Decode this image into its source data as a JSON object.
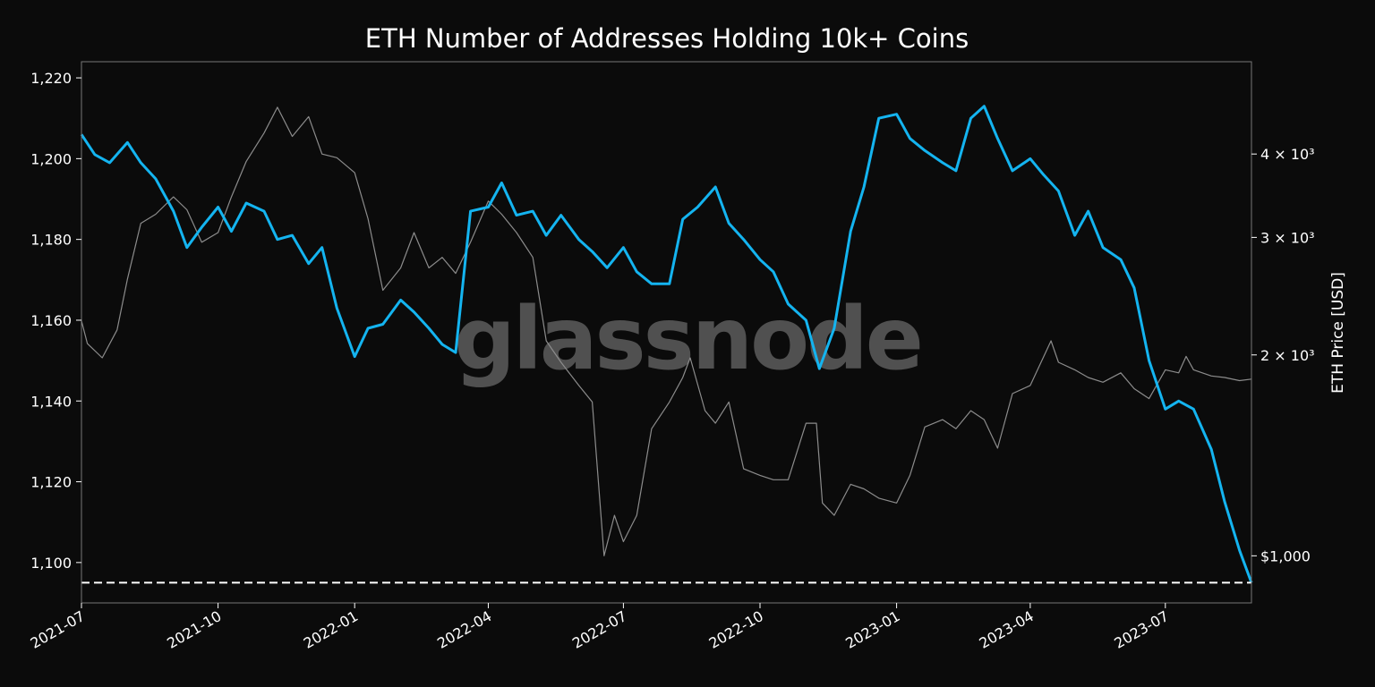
{
  "watermark": "glassnode",
  "colors": {
    "background": "#0b0b0b",
    "addresses_line": "#14b4f0",
    "price_line": "#8c8c8c",
    "frame": "#777777",
    "reference_line": "#ffffff"
  },
  "chart_data": {
    "type": "line",
    "title": "ETH Number of Addresses Holding 10k+ Coins",
    "xlabel": "",
    "ylabel": "",
    "y2label": "ETH Price [USD]",
    "x_ticks": [
      "2021-07",
      "2021-10",
      "2022-01",
      "2022-04",
      "2022-07",
      "2022-10",
      "2023-01",
      "2023-04",
      "2023-07"
    ],
    "y_ticks": [
      "1,100",
      "1,120",
      "1,140",
      "1,160",
      "1,180",
      "1,200",
      "1,220"
    ],
    "y2_ticks": [
      "$1,000",
      "2 × 10³",
      "3 × 10³",
      "4 × 10³"
    ],
    "y2_scale": "log",
    "xlim": [
      "2021-07-01",
      "2023-08-28"
    ],
    "ylim": [
      1090,
      1224
    ],
    "y2lim": [
      850,
      5500
    ],
    "reference_line": {
      "axis": "y",
      "value": 1095,
      "style": "dashed"
    },
    "series": [
      {
        "axis": "left",
        "color": "#14b4f0",
        "points": [
          [
            "2021-07-01",
            1206
          ],
          [
            "2021-07-10",
            1201
          ],
          [
            "2021-07-20",
            1199
          ],
          [
            "2021-08-01",
            1204
          ],
          [
            "2021-08-10",
            1199
          ],
          [
            "2021-08-20",
            1195
          ],
          [
            "2021-09-01",
            1187
          ],
          [
            "2021-09-10",
            1178
          ],
          [
            "2021-09-20",
            1183
          ],
          [
            "2021-10-01",
            1188
          ],
          [
            "2021-10-10",
            1182
          ],
          [
            "2021-10-20",
            1189
          ],
          [
            "2021-11-01",
            1187
          ],
          [
            "2021-11-10",
            1180
          ],
          [
            "2021-11-20",
            1181
          ],
          [
            "2021-12-01",
            1174
          ],
          [
            "2021-12-10",
            1178
          ],
          [
            "2021-12-20",
            1163
          ],
          [
            "2022-01-01",
            1151
          ],
          [
            "2022-01-10",
            1158
          ],
          [
            "2022-01-20",
            1159
          ],
          [
            "2022-02-01",
            1165
          ],
          [
            "2022-02-10",
            1162
          ],
          [
            "2022-02-20",
            1158
          ],
          [
            "2022-03-01",
            1154
          ],
          [
            "2022-03-10",
            1152
          ],
          [
            "2022-03-20",
            1187
          ],
          [
            "2022-04-01",
            1188
          ],
          [
            "2022-04-10",
            1194
          ],
          [
            "2022-04-20",
            1186
          ],
          [
            "2022-05-01",
            1187
          ],
          [
            "2022-05-10",
            1181
          ],
          [
            "2022-05-20",
            1186
          ],
          [
            "2022-06-01",
            1180
          ],
          [
            "2022-06-10",
            1177
          ],
          [
            "2022-06-20",
            1173
          ],
          [
            "2022-07-01",
            1178
          ],
          [
            "2022-07-10",
            1172
          ],
          [
            "2022-07-20",
            1169
          ],
          [
            "2022-08-01",
            1169
          ],
          [
            "2022-08-10",
            1185
          ],
          [
            "2022-08-20",
            1188
          ],
          [
            "2022-09-01",
            1193
          ],
          [
            "2022-09-10",
            1184
          ],
          [
            "2022-09-20",
            1180
          ],
          [
            "2022-10-01",
            1175
          ],
          [
            "2022-10-10",
            1172
          ],
          [
            "2022-10-20",
            1164
          ],
          [
            "2022-11-01",
            1160
          ],
          [
            "2022-11-10",
            1148
          ],
          [
            "2022-11-20",
            1158
          ],
          [
            "2022-12-01",
            1182
          ],
          [
            "2022-12-10",
            1193
          ],
          [
            "2022-12-20",
            1210
          ],
          [
            "2023-01-01",
            1211
          ],
          [
            "2023-01-10",
            1205
          ],
          [
            "2023-01-20",
            1202
          ],
          [
            "2023-02-01",
            1199
          ],
          [
            "2023-02-10",
            1197
          ],
          [
            "2023-02-20",
            1210
          ],
          [
            "2023-03-01",
            1213
          ],
          [
            "2023-03-10",
            1205
          ],
          [
            "2023-03-20",
            1197
          ],
          [
            "2023-04-01",
            1200
          ],
          [
            "2023-04-10",
            1196
          ],
          [
            "2023-04-20",
            1192
          ],
          [
            "2023-05-01",
            1181
          ],
          [
            "2023-05-10",
            1187
          ],
          [
            "2023-05-20",
            1178
          ],
          [
            "2023-06-01",
            1175
          ],
          [
            "2023-06-10",
            1168
          ],
          [
            "2023-06-20",
            1150
          ],
          [
            "2023-07-01",
            1138
          ],
          [
            "2023-07-10",
            1140
          ],
          [
            "2023-07-20",
            1138
          ],
          [
            "2023-08-01",
            1128
          ],
          [
            "2023-08-10",
            1115
          ],
          [
            "2023-08-20",
            1103
          ],
          [
            "2023-08-28",
            1095
          ]
        ]
      },
      {
        "axis": "right",
        "color": "#8c8c8c",
        "points": [
          [
            "2021-07-01",
            2250
          ],
          [
            "2021-07-05",
            2080
          ],
          [
            "2021-07-15",
            1980
          ],
          [
            "2021-07-25",
            2180
          ],
          [
            "2021-08-01",
            2600
          ],
          [
            "2021-08-10",
            3150
          ],
          [
            "2021-08-20",
            3250
          ],
          [
            "2021-09-01",
            3450
          ],
          [
            "2021-09-10",
            3300
          ],
          [
            "2021-09-20",
            2950
          ],
          [
            "2021-10-01",
            3050
          ],
          [
            "2021-10-10",
            3450
          ],
          [
            "2021-10-20",
            3900
          ],
          [
            "2021-11-01",
            4300
          ],
          [
            "2021-11-10",
            4700
          ],
          [
            "2021-11-20",
            4250
          ],
          [
            "2021-12-01",
            4550
          ],
          [
            "2021-12-10",
            4000
          ],
          [
            "2021-12-20",
            3950
          ],
          [
            "2022-01-01",
            3750
          ],
          [
            "2022-01-10",
            3200
          ],
          [
            "2022-01-20",
            2500
          ],
          [
            "2022-02-01",
            2700
          ],
          [
            "2022-02-10",
            3050
          ],
          [
            "2022-02-20",
            2700
          ],
          [
            "2022-03-01",
            2800
          ],
          [
            "2022-03-10",
            2650
          ],
          [
            "2022-03-20",
            2950
          ],
          [
            "2022-04-01",
            3400
          ],
          [
            "2022-04-10",
            3250
          ],
          [
            "2022-04-20",
            3050
          ],
          [
            "2022-05-01",
            2800
          ],
          [
            "2022-05-10",
            2100
          ],
          [
            "2022-05-20",
            1950
          ],
          [
            "2022-06-01",
            1800
          ],
          [
            "2022-06-10",
            1700
          ],
          [
            "2022-06-18",
            1000
          ],
          [
            "2022-06-25",
            1150
          ],
          [
            "2022-07-01",
            1050
          ],
          [
            "2022-07-10",
            1150
          ],
          [
            "2022-07-20",
            1550
          ],
          [
            "2022-08-01",
            1700
          ],
          [
            "2022-08-10",
            1850
          ],
          [
            "2022-08-15",
            1980
          ],
          [
            "2022-08-25",
            1650
          ],
          [
            "2022-09-01",
            1580
          ],
          [
            "2022-09-10",
            1700
          ],
          [
            "2022-09-20",
            1350
          ],
          [
            "2022-10-01",
            1320
          ],
          [
            "2022-10-10",
            1300
          ],
          [
            "2022-10-20",
            1300
          ],
          [
            "2022-11-01",
            1580
          ],
          [
            "2022-11-08",
            1580
          ],
          [
            "2022-11-12",
            1200
          ],
          [
            "2022-11-20",
            1150
          ],
          [
            "2022-12-01",
            1280
          ],
          [
            "2022-12-10",
            1260
          ],
          [
            "2022-12-20",
            1220
          ],
          [
            "2023-01-01",
            1200
          ],
          [
            "2023-01-10",
            1320
          ],
          [
            "2023-01-20",
            1560
          ],
          [
            "2023-02-01",
            1600
          ],
          [
            "2023-02-10",
            1550
          ],
          [
            "2023-02-20",
            1650
          ],
          [
            "2023-03-01",
            1600
          ],
          [
            "2023-03-10",
            1450
          ],
          [
            "2023-03-20",
            1750
          ],
          [
            "2023-04-01",
            1800
          ],
          [
            "2023-04-15",
            2100
          ],
          [
            "2023-04-20",
            1950
          ],
          [
            "2023-05-01",
            1900
          ],
          [
            "2023-05-10",
            1850
          ],
          [
            "2023-05-20",
            1820
          ],
          [
            "2023-06-01",
            1880
          ],
          [
            "2023-06-10",
            1780
          ],
          [
            "2023-06-20",
            1720
          ],
          [
            "2023-07-01",
            1900
          ],
          [
            "2023-07-10",
            1880
          ],
          [
            "2023-07-15",
            1990
          ],
          [
            "2023-07-20",
            1900
          ],
          [
            "2023-08-01",
            1860
          ],
          [
            "2023-08-10",
            1850
          ],
          [
            "2023-08-20",
            1830
          ],
          [
            "2023-08-28",
            1840
          ]
        ]
      }
    ]
  }
}
